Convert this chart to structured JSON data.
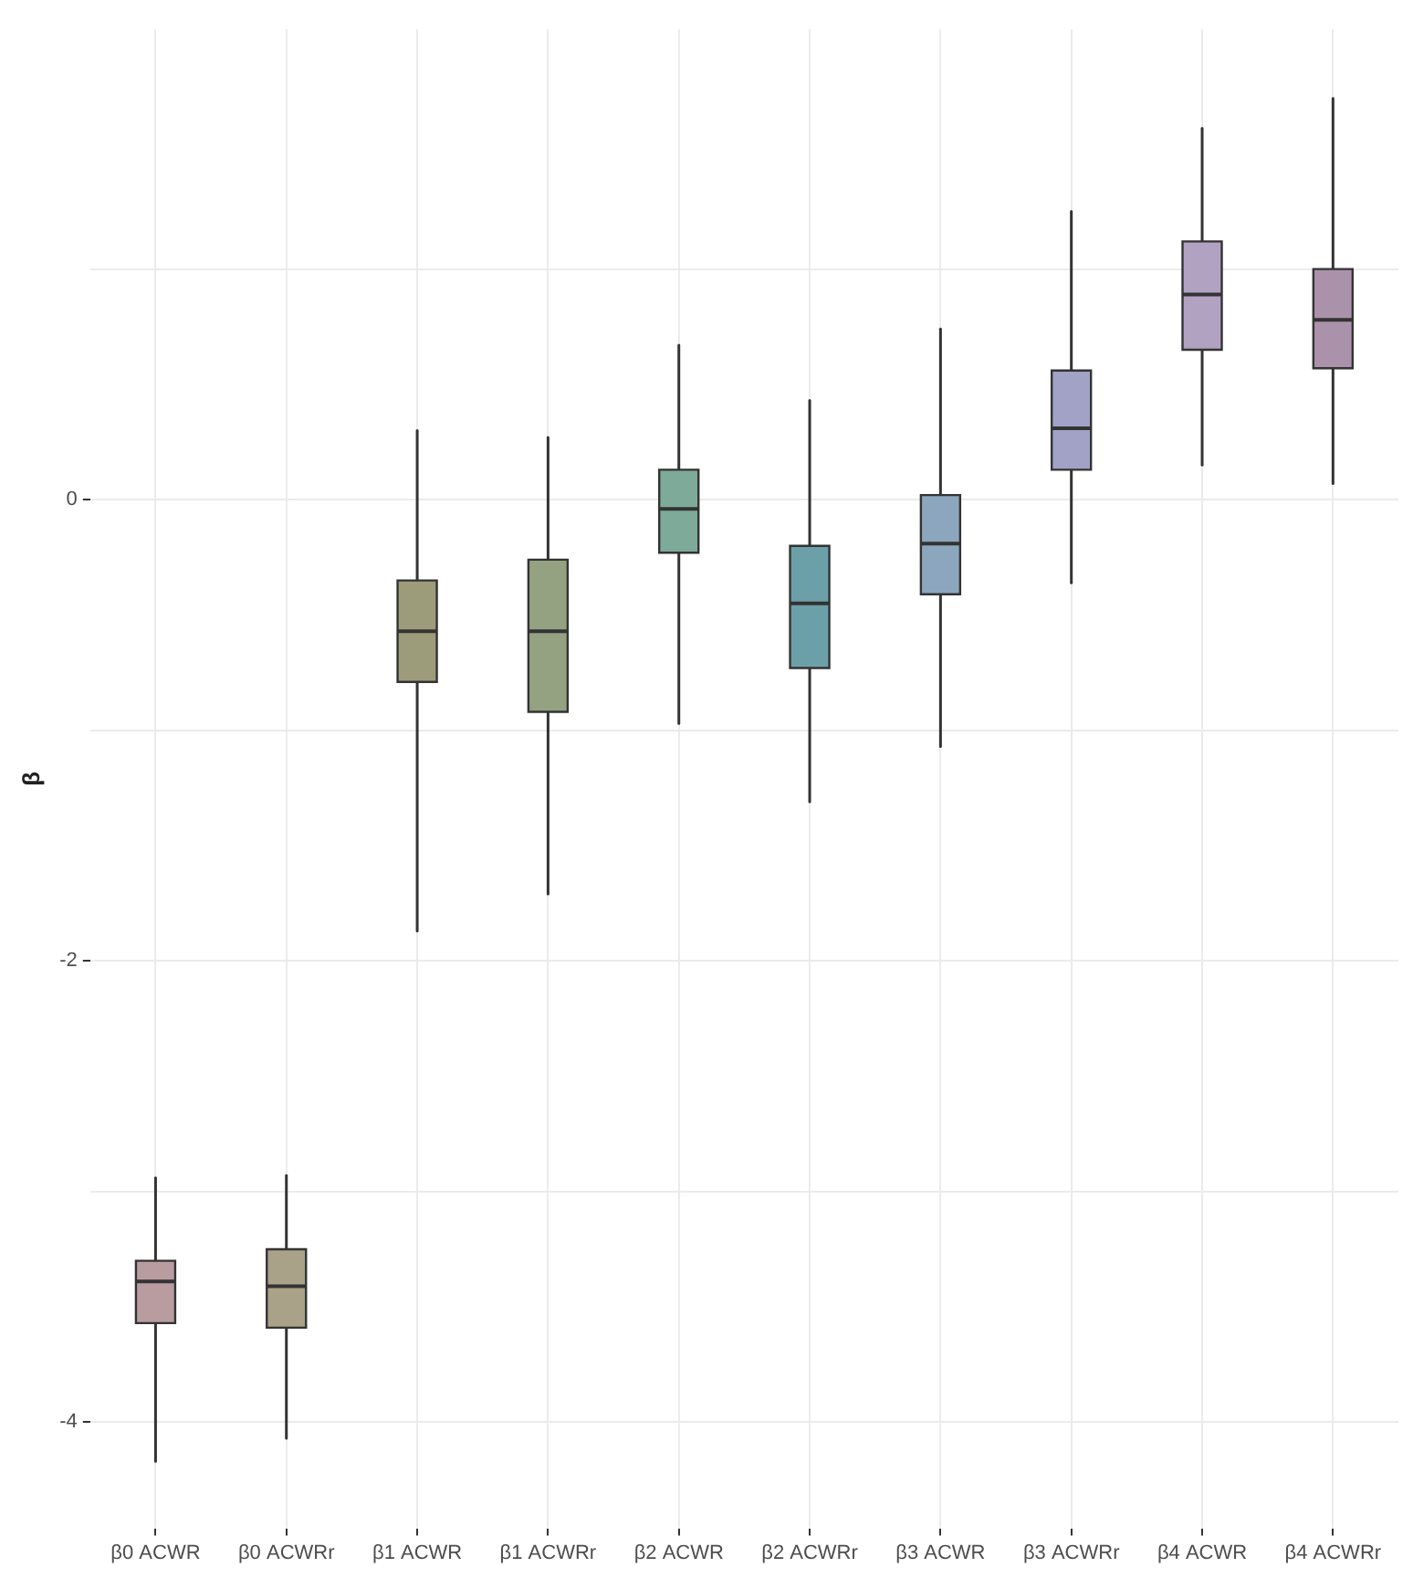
{
  "chart_data": {
    "type": "box",
    "ylabel": "β",
    "categories": [
      "β0 ACWR",
      "β0 ACWRr",
      "β1 ACWR",
      "β1 ACWRr",
      "β2 ACWR",
      "β2 ACWRr",
      "β3 ACWR",
      "β3 ACWRr",
      "β4 ACWR",
      "β4 ACWRr"
    ],
    "colors": [
      "#b89ca0",
      "#aaa288",
      "#9c9c7a",
      "#94a282",
      "#7eaa9a",
      "#6ca0a8",
      "#8ca6be",
      "#a2a2c6",
      "#b2a2c2",
      "#aa92aa"
    ],
    "boxes": [
      {
        "low": -4.17,
        "q1": -3.57,
        "median": -3.39,
        "q3": -3.3,
        "high": -2.94
      },
      {
        "low": -4.07,
        "q1": -3.59,
        "median": -3.41,
        "q3": -3.25,
        "high": -2.93
      },
      {
        "low": -1.87,
        "q1": -0.79,
        "median": -0.57,
        "q3": -0.35,
        "high": 0.3
      },
      {
        "low": -1.71,
        "q1": -0.92,
        "median": -0.57,
        "q3": -0.26,
        "high": 0.27
      },
      {
        "low": -0.97,
        "q1": -0.23,
        "median": -0.04,
        "q3": 0.13,
        "high": 0.67
      },
      {
        "low": -1.31,
        "q1": -0.73,
        "median": -0.45,
        "q3": -0.2,
        "high": 0.43
      },
      {
        "low": -1.07,
        "q1": -0.41,
        "median": -0.19,
        "q3": 0.02,
        "high": 0.74
      },
      {
        "low": -0.36,
        "q1": 0.13,
        "median": 0.31,
        "q3": 0.56,
        "high": 1.25
      },
      {
        "low": 0.15,
        "q1": 0.65,
        "median": 0.89,
        "q3": 1.12,
        "high": 1.61
      },
      {
        "low": 0.07,
        "q1": 0.57,
        "median": 0.78,
        "q3": 1.0,
        "high": 1.74
      }
    ],
    "ylim": [
      -4.46,
      2.04
    ],
    "yticks": [
      -4,
      {
        "value": -3,
        "label": null
      },
      -2,
      {
        "value": -1,
        "label": null
      },
      0,
      {
        "value": 1,
        "label": null
      }
    ],
    "grid": true,
    "legend": false
  }
}
